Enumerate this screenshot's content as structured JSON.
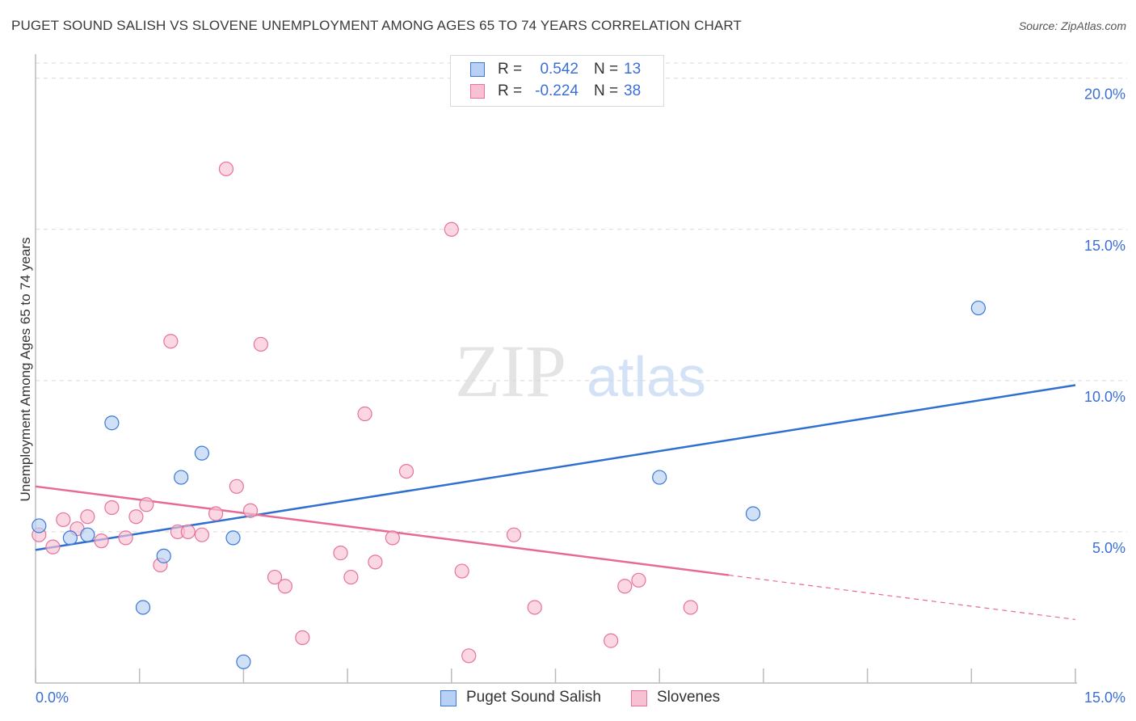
{
  "title": "PUGET SOUND SALISH VS SLOVENE UNEMPLOYMENT AMONG AGES 65 TO 74 YEARS CORRELATION CHART",
  "source": "Source: ZipAtlas.com",
  "watermark": {
    "zip": "ZIP",
    "atlas": "atlas"
  },
  "colors": {
    "blue": "#3b78d8",
    "blue_fill": "#b7d0f3",
    "blue_line": "#2f6fd0",
    "pink": "#e8729b",
    "pink_fill": "#f7c1d3",
    "pink_line": "#e66a93",
    "tick_text": "#3b6fd6",
    "grid": "#d8d8d8"
  },
  "legend": {
    "rows": [
      {
        "r_label": "R =",
        "r_value": "0.542",
        "n_label": "N =",
        "n_value": "13"
      },
      {
        "r_label": "R =",
        "r_value": "-0.224",
        "n_label": "N =",
        "n_value": "38"
      }
    ]
  },
  "bottom_legend": {
    "series1": "Puget Sound Salish",
    "series2": "Slovenes"
  },
  "chart_data": {
    "type": "scatter",
    "title": "PUGET SOUND SALISH VS SLOVENE UNEMPLOYMENT AMONG AGES 65 TO 74 YEARS CORRELATION CHART",
    "xlabel": "",
    "ylabel": "Unemployment Among Ages 65 to 74 years",
    "xlim": [
      0,
      15
    ],
    "ylim": [
      0,
      20.5
    ],
    "x_tick_labels": [
      "0.0%",
      "15.0%"
    ],
    "y_ticks": [
      5,
      10,
      15,
      20
    ],
    "y_tick_labels": [
      "5.0%",
      "10.0%",
      "15.0%",
      "20.0%"
    ],
    "series": [
      {
        "name": "Puget Sound Salish",
        "color": "blue",
        "points": [
          [
            0.05,
            5.2
          ],
          [
            0.5,
            4.8
          ],
          [
            0.75,
            4.9
          ],
          [
            1.1,
            8.6
          ],
          [
            1.55,
            2.5
          ],
          [
            1.85,
            4.2
          ],
          [
            2.1,
            6.8
          ],
          [
            2.4,
            7.6
          ],
          [
            2.85,
            4.8
          ],
          [
            3.0,
            0.7
          ],
          [
            9.0,
            6.8
          ],
          [
            10.35,
            5.6
          ],
          [
            13.6,
            12.4
          ]
        ],
        "trend": {
          "x": [
            0,
            15
          ],
          "y": [
            4.4,
            9.85
          ],
          "dashed_from": null
        }
      },
      {
        "name": "Slovenes",
        "color": "pink",
        "points": [
          [
            0.05,
            4.9
          ],
          [
            0.25,
            4.5
          ],
          [
            0.4,
            5.4
          ],
          [
            0.6,
            5.1
          ],
          [
            0.75,
            5.5
          ],
          [
            0.95,
            4.7
          ],
          [
            1.1,
            5.8
          ],
          [
            1.3,
            4.8
          ],
          [
            1.45,
            5.5
          ],
          [
            1.6,
            5.9
          ],
          [
            1.8,
            3.9
          ],
          [
            1.95,
            11.3
          ],
          [
            2.05,
            5.0
          ],
          [
            2.2,
            5.0
          ],
          [
            2.4,
            4.9
          ],
          [
            2.6,
            5.6
          ],
          [
            2.75,
            17.0
          ],
          [
            2.9,
            6.5
          ],
          [
            3.1,
            5.7
          ],
          [
            3.25,
            11.2
          ],
          [
            3.45,
            3.5
          ],
          [
            3.6,
            3.2
          ],
          [
            3.85,
            1.5
          ],
          [
            4.4,
            4.3
          ],
          [
            4.55,
            3.5
          ],
          [
            4.75,
            8.9
          ],
          [
            4.9,
            4.0
          ],
          [
            5.15,
            4.8
          ],
          [
            5.35,
            7.0
          ],
          [
            6.0,
            15.0
          ],
          [
            6.15,
            3.7
          ],
          [
            6.25,
            0.9
          ],
          [
            6.9,
            4.9
          ],
          [
            7.2,
            2.5
          ],
          [
            8.3,
            1.4
          ],
          [
            8.5,
            3.2
          ],
          [
            8.7,
            3.4
          ],
          [
            9.45,
            2.5
          ]
        ],
        "trend": {
          "x": [
            0,
            15
          ],
          "y": [
            6.5,
            2.1
          ],
          "dashed_from": 10.0
        }
      }
    ]
  }
}
